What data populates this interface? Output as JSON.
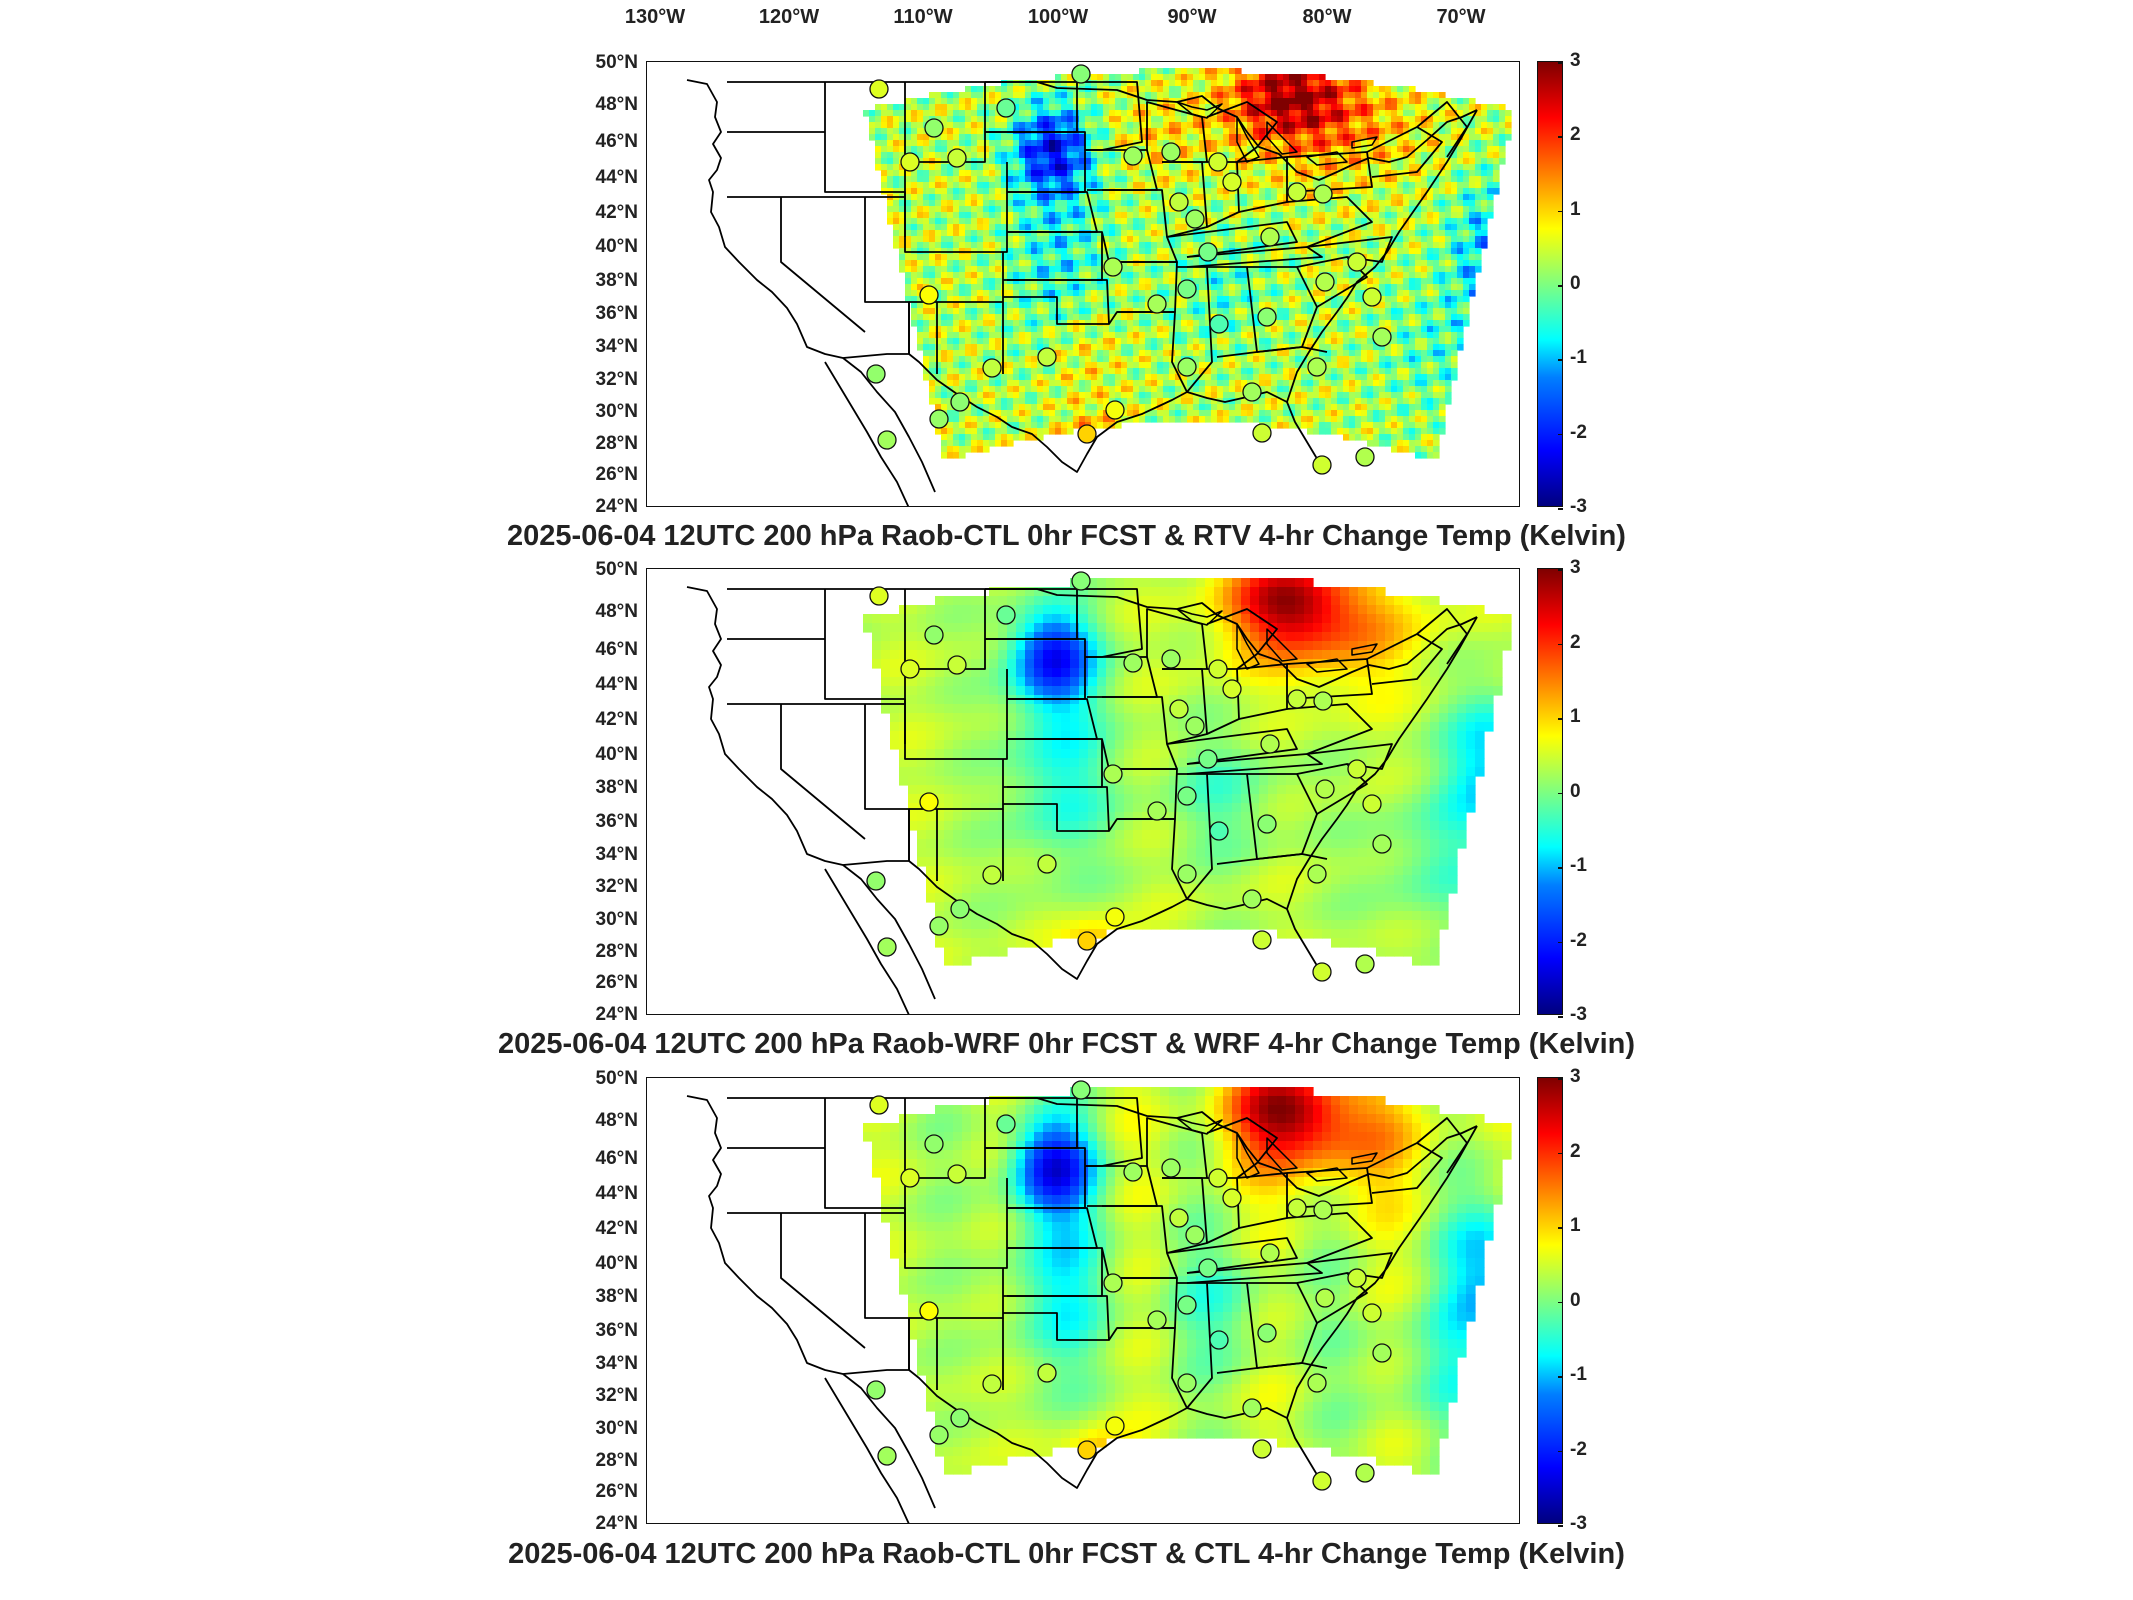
{
  "longitude_labels": [
    "130°W",
    "120°W",
    "110°W",
    "100°W",
    "90°W",
    "80°W",
    "70°W"
  ],
  "latitude_labels": [
    "50°N",
    "48°N",
    "46°N",
    "44°N",
    "42°N",
    "40°N",
    "38°N",
    "36°N",
    "34°N",
    "32°N",
    "30°N",
    "28°N",
    "26°N",
    "24°N"
  ],
  "colorbar_ticks": [
    "3",
    "2",
    "1",
    "0",
    "-1",
    "-2",
    "-3"
  ],
  "colorbar_range": [
    -3,
    3
  ],
  "colormap": "jet",
  "colors": {
    "land_outline": "#000000",
    "colorbar_min": "#00007f",
    "colorbar_max": "#7f0000"
  },
  "panels": [
    {
      "title": "2025-06-04 12UTC 200 hPa Raob-CTL 0hr FCST & RTV 4-hr Change Temp (Kelvin)",
      "field_style": "noisy"
    },
    {
      "title": "2025-06-04 12UTC 200 hPa Raob-WRF 0hr FCST & WRF 4-hr Change Temp (Kelvin)",
      "field_style": "smooth"
    },
    {
      "title": "2025-06-04 12UTC 200 hPa Raob-CTL 0hr FCST & CTL 4-hr Change Temp (Kelvin)",
      "field_style": "smooth"
    }
  ]
}
